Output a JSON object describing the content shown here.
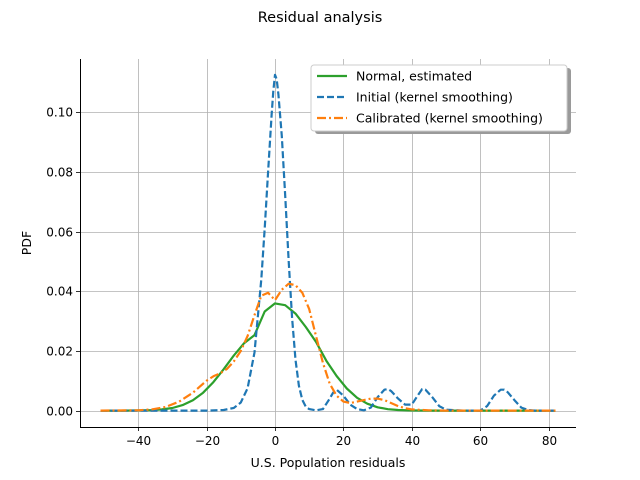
{
  "chart_data": {
    "type": "line",
    "title": "Residual analysis",
    "xlabel": "U.S. Population residuals",
    "ylabel": "PDF",
    "xlim": [
      -57,
      88
    ],
    "ylim": [
      -0.0055,
      0.1178
    ],
    "xticks": [
      -40,
      -20,
      0,
      20,
      40,
      60,
      80
    ],
    "xtick_labels": [
      "−40",
      "−20",
      "0",
      "20",
      "40",
      "60",
      "80"
    ],
    "yticks": [
      0.0,
      0.02,
      0.04,
      0.06,
      0.08,
      0.1
    ],
    "ytick_labels": [
      "0.00",
      "0.02",
      "0.04",
      "0.06",
      "0.08",
      "0.10"
    ],
    "grid": true,
    "legend_position": "top-right",
    "series": [
      {
        "name": "Normal, estimated",
        "color": "#2ca02c",
        "style": "solid",
        "x": [
          -51,
          -48,
          -45,
          -42,
          -39,
          -36,
          -33,
          -30,
          -27,
          -24,
          -21,
          -18,
          -15,
          -12,
          -9,
          -6,
          -3,
          0,
          3,
          6,
          9,
          12,
          15,
          18,
          21,
          24,
          27,
          30,
          33,
          36,
          39,
          42,
          45,
          48,
          51,
          54,
          57,
          60,
          63,
          66,
          69,
          72,
          75,
          78,
          82
        ],
        "y": [
          0.0,
          0.0,
          1e-05,
          2e-05,
          6e-05,
          0.00016,
          0.00039,
          0.00088,
          0.00183,
          0.00346,
          0.006,
          0.00953,
          0.01387,
          0.0185,
          0.0226,
          0.0253,
          0.0332,
          0.0359,
          0.0353,
          0.0325,
          0.028,
          0.023,
          0.0167,
          0.0116,
          0.0074,
          0.0043,
          0.0023,
          0.0011,
          0.00048,
          0.00019,
          7e-05,
          2e-05,
          1e-05,
          0.0,
          0.0,
          0.0,
          0.0,
          0.0,
          0.0,
          0.0,
          0.0,
          0.0,
          0.0,
          0.0,
          0.0
        ]
      },
      {
        "name": "Initial (kernel smoothing)",
        "color": "#1f77b4",
        "style": "dashed",
        "x": [
          -51,
          -20,
          -15,
          -12,
          -10,
          -8,
          -6,
          -4,
          -3,
          -2,
          -1,
          -0.5,
          0,
          0.5,
          1,
          2,
          3,
          4,
          5,
          6,
          7,
          8,
          9,
          10,
          12,
          14,
          16,
          17,
          18,
          20,
          22,
          24,
          26,
          28,
          30,
          32,
          33,
          34,
          36,
          38,
          40,
          42,
          43,
          44,
          46,
          48,
          50,
          55,
          60,
          62,
          64,
          66,
          67,
          68,
          70,
          72,
          74,
          76,
          82
        ],
        "y": [
          0.0,
          0.0,
          0.0002,
          0.0009,
          0.0027,
          0.0075,
          0.0195,
          0.044,
          0.061,
          0.08,
          0.099,
          0.107,
          0.1125,
          0.111,
          0.106,
          0.092,
          0.072,
          0.05,
          0.031,
          0.017,
          0.0083,
          0.0036,
          0.0013,
          0.0005,
          0.0001,
          0.0005,
          0.004,
          0.006,
          0.007,
          0.005,
          0.002,
          0.0005,
          0.0001,
          0.001,
          0.0045,
          0.007,
          0.0072,
          0.0065,
          0.004,
          0.002,
          0.002,
          0.0055,
          0.0072,
          0.007,
          0.0045,
          0.0015,
          0.0003,
          0.0,
          0.0,
          0.0015,
          0.005,
          0.007,
          0.007,
          0.0062,
          0.0035,
          0.001,
          0.0002,
          0.0,
          0.0
        ]
      },
      {
        "name": "Calibrated (kernel smoothing)",
        "color": "#ff7f0e",
        "style": "dashdot",
        "x": [
          -51,
          -40,
          -36,
          -32,
          -28,
          -24,
          -22,
          -20,
          -18,
          -16,
          -14,
          -12,
          -10,
          -8,
          -6,
          -4,
          -2,
          0,
          2,
          4,
          6,
          8,
          10,
          12,
          14,
          16,
          18,
          20,
          22,
          24,
          26,
          28,
          30,
          32,
          34,
          36,
          38,
          40,
          45,
          50,
          60,
          70,
          82
        ],
        "y": [
          0.0,
          0.0001,
          0.0004,
          0.0012,
          0.003,
          0.006,
          0.008,
          0.01,
          0.0115,
          0.0125,
          0.014,
          0.0165,
          0.02,
          0.025,
          0.032,
          0.0385,
          0.0395,
          0.037,
          0.0405,
          0.0425,
          0.042,
          0.0395,
          0.034,
          0.025,
          0.016,
          0.009,
          0.005,
          0.003,
          0.0025,
          0.003,
          0.0035,
          0.004,
          0.004,
          0.0035,
          0.0025,
          0.0015,
          0.0008,
          0.0004,
          0.0001,
          0.0,
          0.0,
          0.0,
          0.0
        ]
      }
    ]
  }
}
